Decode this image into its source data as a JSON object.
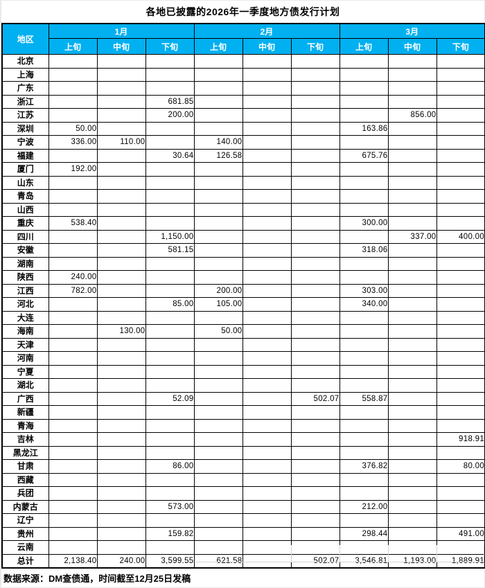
{
  "title": "各地已披露的2026年一季度地方债发行计划",
  "source_note": "数据来源：DM查债通，时间截至12月25日发稿",
  "colors": {
    "header_bg": "#00B0F0",
    "header_text": "#FFFFFF",
    "border": "#000000",
    "faint_grid": "#D4D4D4",
    "page_bg": "#E9E9E9"
  },
  "table": {
    "region_header": "地区",
    "month_headers": [
      "1月",
      "2月",
      "3月"
    ],
    "period_headers": [
      "上旬",
      "中旬",
      "下旬"
    ],
    "columns": [
      "1月上旬",
      "1月中旬",
      "1月下旬",
      "2月上旬",
      "2月中旬",
      "2月下旬",
      "3月上旬",
      "3月中旬",
      "3月下旬"
    ],
    "rows": [
      {
        "region": "北京",
        "values": [
          "",
          "",
          "",
          "",
          "",
          "",
          "",
          "",
          ""
        ]
      },
      {
        "region": "上海",
        "values": [
          "",
          "",
          "",
          "",
          "",
          "",
          "",
          "",
          ""
        ]
      },
      {
        "region": "广东",
        "values": [
          "",
          "",
          "",
          "",
          "",
          "",
          "",
          "",
          ""
        ]
      },
      {
        "region": "浙江",
        "values": [
          "",
          "",
          "681.85",
          "",
          "",
          "",
          "",
          "",
          ""
        ]
      },
      {
        "region": "江苏",
        "values": [
          "",
          "",
          "200.00",
          "",
          "",
          "",
          "",
          "856.00",
          ""
        ]
      },
      {
        "region": "深圳",
        "values": [
          "50.00",
          "",
          "",
          "",
          "",
          "",
          "163.86",
          "",
          ""
        ]
      },
      {
        "region": "宁波",
        "values": [
          "336.00",
          "110.00",
          "",
          "140.00",
          "",
          "",
          "",
          "",
          ""
        ]
      },
      {
        "region": "福建",
        "values": [
          "",
          "",
          "30.64",
          "126.58",
          "",
          "",
          "675.76",
          "",
          ""
        ]
      },
      {
        "region": "厦门",
        "values": [
          "192.00",
          "",
          "",
          "",
          "",
          "",
          "",
          "",
          ""
        ]
      },
      {
        "region": "山东",
        "values": [
          "",
          "",
          "",
          "",
          "",
          "",
          "",
          "",
          ""
        ]
      },
      {
        "region": "青岛",
        "values": [
          "",
          "",
          "",
          "",
          "",
          "",
          "",
          "",
          ""
        ]
      },
      {
        "region": "山西",
        "values": [
          "",
          "",
          "",
          "",
          "",
          "",
          "",
          "",
          ""
        ]
      },
      {
        "region": "重庆",
        "values": [
          "538.40",
          "",
          "",
          "",
          "",
          "",
          "300.00",
          "",
          ""
        ]
      },
      {
        "region": "四川",
        "values": [
          "",
          "",
          "1,150.00",
          "",
          "",
          "",
          "",
          "337.00",
          "400.00"
        ]
      },
      {
        "region": "安徽",
        "values": [
          "",
          "",
          "581.15",
          "",
          "",
          "",
          "318.06",
          "",
          ""
        ]
      },
      {
        "region": "湖南",
        "values": [
          "",
          "",
          "",
          "",
          "",
          "",
          "",
          "",
          ""
        ]
      },
      {
        "region": "陕西",
        "values": [
          "240.00",
          "",
          "",
          "",
          "",
          "",
          "",
          "",
          ""
        ]
      },
      {
        "region": "江西",
        "values": [
          "782.00",
          "",
          "",
          "200.00",
          "",
          "",
          "303.00",
          "",
          ""
        ]
      },
      {
        "region": "河北",
        "values": [
          "",
          "",
          "85.00",
          "105.00",
          "",
          "",
          "340.00",
          "",
          ""
        ]
      },
      {
        "region": "大连",
        "values": [
          "",
          "",
          "",
          "",
          "",
          "",
          "",
          "",
          ""
        ]
      },
      {
        "region": "海南",
        "values": [
          "",
          "130.00",
          "",
          "50.00",
          "",
          "",
          "",
          "",
          ""
        ]
      },
      {
        "region": "天津",
        "values": [
          "",
          "",
          "",
          "",
          "",
          "",
          "",
          "",
          ""
        ]
      },
      {
        "region": "河南",
        "values": [
          "",
          "",
          "",
          "",
          "",
          "",
          "",
          "",
          ""
        ]
      },
      {
        "region": "宁夏",
        "values": [
          "",
          "",
          "",
          "",
          "",
          "",
          "",
          "",
          ""
        ]
      },
      {
        "region": "湖北",
        "values": [
          "",
          "",
          "",
          "",
          "",
          "",
          "",
          "",
          ""
        ]
      },
      {
        "region": "广西",
        "values": [
          "",
          "",
          "52.09",
          "",
          "",
          "502.07",
          "558.87",
          "",
          ""
        ]
      },
      {
        "region": "新疆",
        "values": [
          "",
          "",
          "",
          "",
          "",
          "",
          "",
          "",
          ""
        ]
      },
      {
        "region": "青海",
        "values": [
          "",
          "",
          "",
          "",
          "",
          "",
          "",
          "",
          ""
        ]
      },
      {
        "region": "吉林",
        "values": [
          "",
          "",
          "",
          "",
          "",
          "",
          "",
          "",
          "918.91"
        ]
      },
      {
        "region": "黑龙江",
        "values": [
          "",
          "",
          "",
          "",
          "",
          "",
          "",
          "",
          ""
        ]
      },
      {
        "region": "甘肃",
        "values": [
          "",
          "",
          "86.00",
          "",
          "",
          "",
          "376.82",
          "",
          "80.00"
        ]
      },
      {
        "region": "西藏",
        "values": [
          "",
          "",
          "",
          "",
          "",
          "",
          "",
          "",
          ""
        ]
      },
      {
        "region": "兵团",
        "values": [
          "",
          "",
          "",
          "",
          "",
          "",
          "",
          "",
          ""
        ]
      },
      {
        "region": "内蒙古",
        "values": [
          "",
          "",
          "573.00",
          "",
          "",
          "",
          "212.00",
          "",
          ""
        ]
      },
      {
        "region": "辽宁",
        "values": [
          "",
          "",
          "",
          "",
          "",
          "",
          "",
          "",
          ""
        ]
      },
      {
        "region": "贵州",
        "values": [
          "",
          "",
          "159.82",
          "",
          "",
          "",
          "298.44",
          "",
          "491.00"
        ]
      },
      {
        "region": "云南",
        "values": [
          "",
          "",
          "",
          "",
          "",
          "",
          "",
          "",
          ""
        ]
      },
      {
        "region": "总计",
        "values": [
          "2,138.40",
          "240.00",
          "3,599.55",
          "621.58",
          "",
          "502.07",
          "3,546.81",
          "1,193.00",
          "1,889.91"
        ]
      }
    ]
  }
}
